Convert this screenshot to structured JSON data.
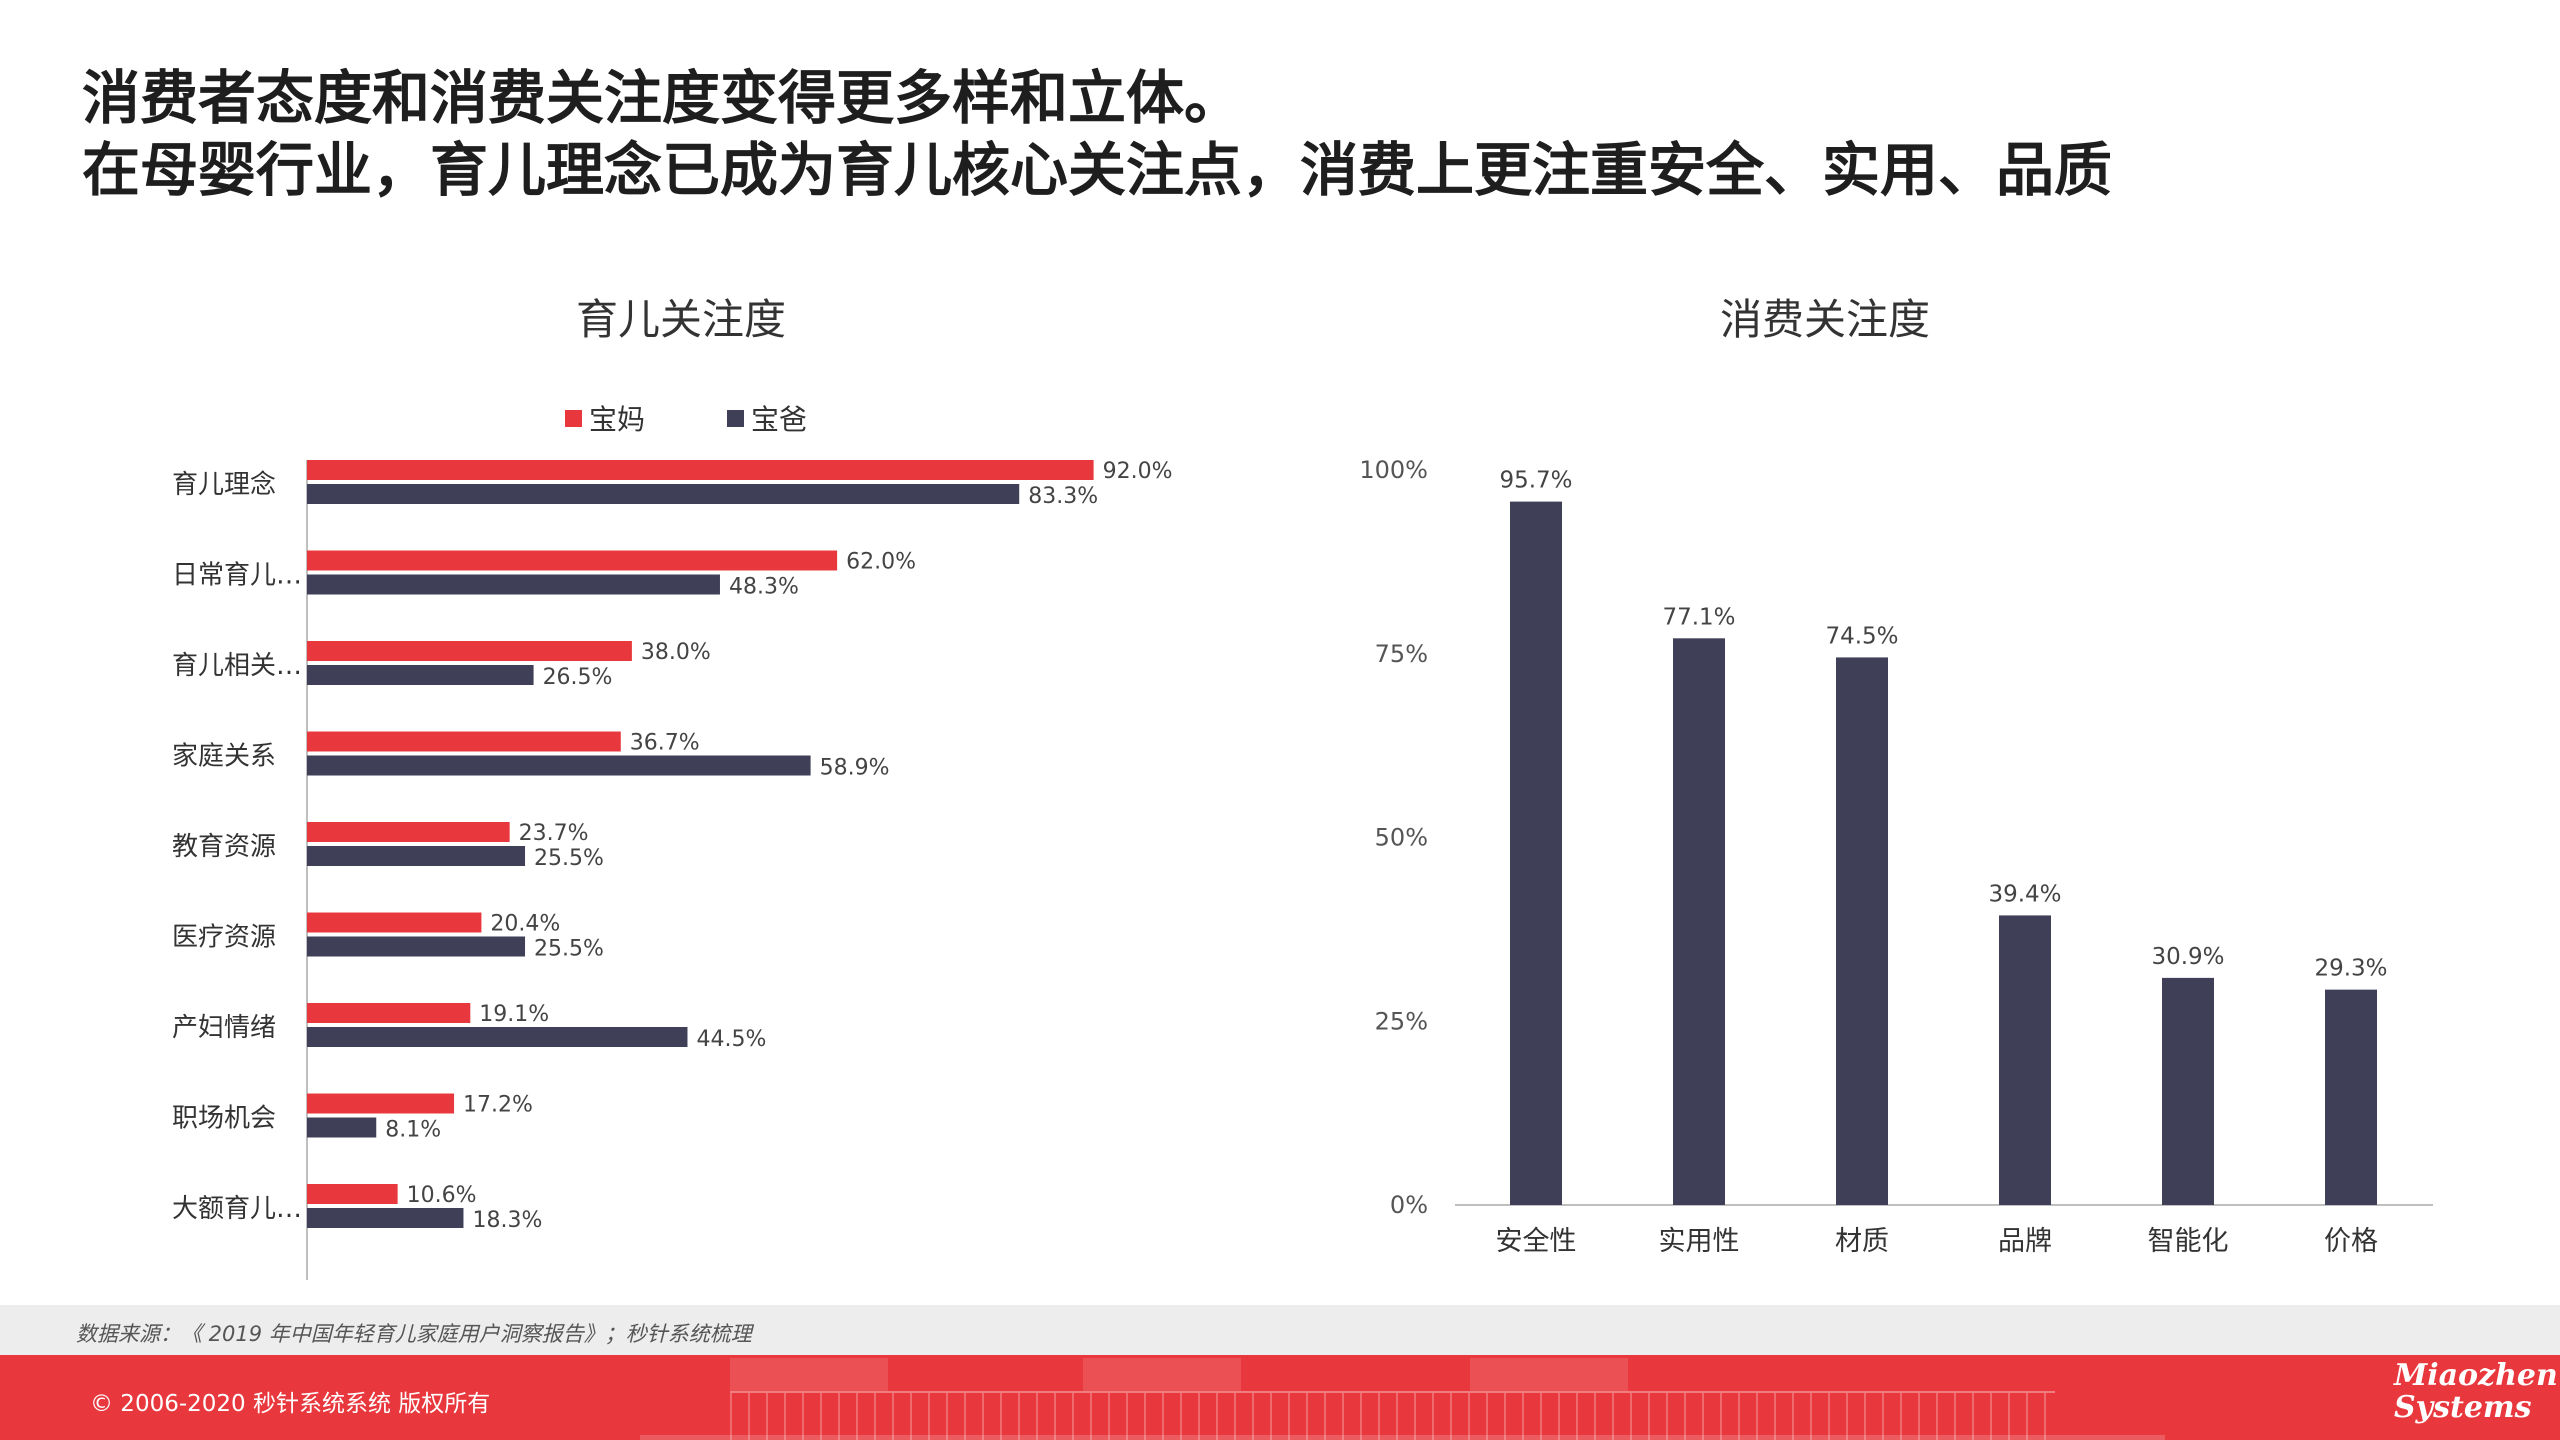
{
  "headline": {
    "line1": "消费者态度和消费关注度变得更多样和立体。",
    "line2": "在母婴行业，育儿理念已成为育儿核心关注点，消费上更注重安全、实用、品质"
  },
  "colors": {
    "mom": "#e8383d",
    "dad": "#3f3f57",
    "axis": "#bfbfbf",
    "footer": "#e8383d"
  },
  "chart_data": [
    {
      "type": "bar",
      "orientation": "horizontal",
      "title": "育儿关注度",
      "legend_position": "top",
      "categories": [
        "育儿理念",
        "日常育儿…",
        "育儿相关…",
        "家庭关系",
        "教育资源",
        "医疗资源",
        "产妇情绪",
        "职场机会",
        "大额育儿…"
      ],
      "series": [
        {
          "name": "宝妈",
          "values": [
            92.0,
            62.0,
            38.0,
            36.7,
            23.7,
            20.4,
            19.1,
            17.2,
            10.6
          ],
          "labels": [
            "92.0%",
            "62.0%",
            "38.0%",
            "36.7%",
            "23.7%",
            "20.4%",
            "19.1%",
            "17.2%",
            "10.6%"
          ]
        },
        {
          "name": "宝爸",
          "values": [
            83.3,
            48.3,
            26.5,
            58.9,
            25.5,
            25.5,
            44.5,
            8.1,
            18.3
          ],
          "labels": [
            "83.3%",
            "48.3%",
            "26.5%",
            "58.9%",
            "25.5%",
            "25.5%",
            "44.5%",
            "8.1%",
            "18.3%"
          ]
        }
      ],
      "xlim": [
        0,
        100
      ],
      "grid": false
    },
    {
      "type": "bar",
      "orientation": "vertical",
      "title": "消费关注度",
      "categories": [
        "安全性",
        "实用性",
        "材质",
        "品牌",
        "智能化",
        "价格"
      ],
      "values": [
        95.7,
        77.1,
        74.5,
        39.4,
        30.9,
        29.3
      ],
      "labels": [
        "95.7%",
        "77.1%",
        "74.5%",
        "39.4%",
        "30.9%",
        "29.3%"
      ],
      "yticks": [
        "0%",
        "25%",
        "50%",
        "75%",
        "100%"
      ],
      "ylim": [
        0,
        100
      ],
      "grid": false
    }
  ],
  "footer": {
    "source": "数据来源：《 2019 年中国年轻育儿家庭用户洞察报告》；秒针系统梳理",
    "copyright": "© 2006-2020 秒针系统系统 版权所有",
    "brand_line1": "Miaozhen",
    "brand_line2": "Systems"
  }
}
